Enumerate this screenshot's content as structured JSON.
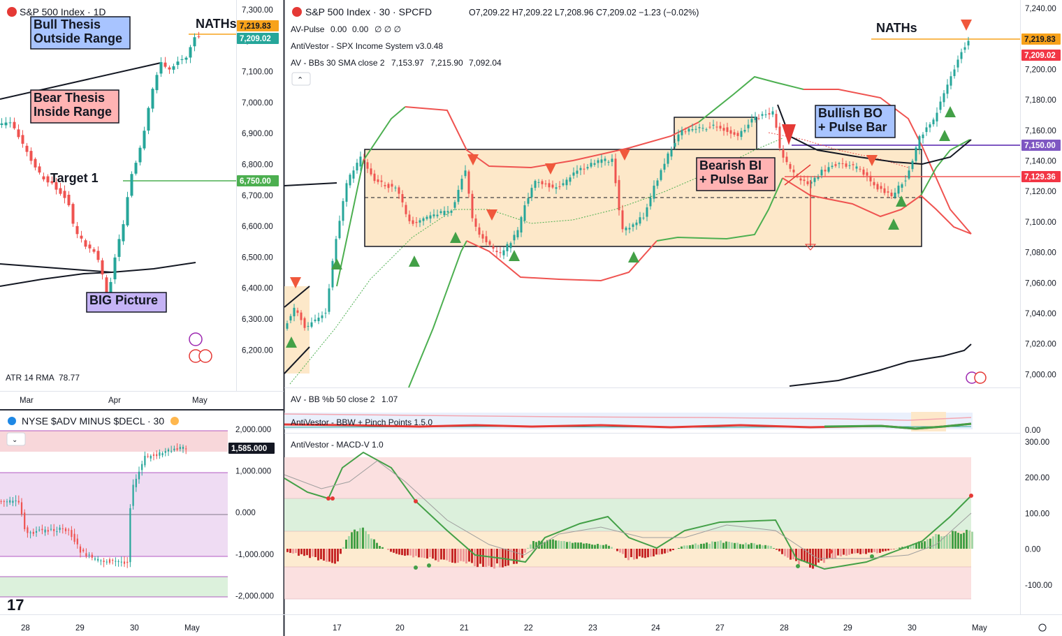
{
  "left_top": {
    "title": "S&P 500 Index · 1D",
    "y_ticks": [
      "7,300.00",
      "7,200.00",
      "7,100.00",
      "7,000.00",
      "6,900.00",
      "6,800.00",
      "6,700.00",
      "6,600.00",
      "6,500.00",
      "6,400.00",
      "6,300.00",
      "6,200.00"
    ],
    "x_ticks": [
      "Mar",
      "Apr",
      "May"
    ],
    "price_tags": [
      {
        "text": "7,219.83",
        "color": "#f7a21b"
      },
      {
        "text": "7,209.02",
        "color": "#26a69a"
      },
      {
        "text": "6,750.00",
        "color": "#4caf50"
      }
    ],
    "labels": {
      "bull": [
        "Bull Thesis",
        "Outside Range"
      ],
      "bear": [
        "Bear Thesis",
        "Inside Range"
      ],
      "target": "Target 1",
      "big": "BIG Picture",
      "naths": "NATHs"
    },
    "atr": {
      "label": "ATR 14 RMA",
      "value": "78.77"
    }
  },
  "left_bottom": {
    "title": "NYSE $ADV MINUS $DECL · 30",
    "y_ticks": [
      "2,000.000",
      "1,000.000",
      "0.000",
      "-1,000.000",
      "-2,000.000"
    ],
    "tag": "1,585.000",
    "x_ticks": [
      "28",
      "29",
      "30",
      "May"
    ]
  },
  "main": {
    "title": "S&P 500 Index · 30 · SPCFD",
    "ohlc": {
      "o": "O7,209.22",
      "h": "H7,209.22",
      "l": "L7,208.96",
      "c": "C7,209.02",
      "chg": "−1.23 (−0.02%)"
    },
    "legend": {
      "pulse": {
        "name": "AV-Pulse",
        "v1": "0.00",
        "v2": "0.00",
        "v3": "∅ ∅ ∅"
      },
      "income": "AntiVestor - SPX Income System v3.0.48",
      "bb": {
        "name": "AV - BBs 30 SMA close 2",
        "v1": "7,153.97",
        "v2": "7,215.90",
        "v3": "7,092.04"
      }
    },
    "y_ticks": [
      "7,240.00",
      "7,220.00",
      "7,200.00",
      "7,180.00",
      "7,160.00",
      "7,140.00",
      "7,120.00",
      "7,100.00",
      "7,080.00",
      "7,060.00",
      "7,040.00",
      "7,020.00",
      "7,000.00"
    ],
    "price_tags": [
      {
        "text": "7,219.83",
        "color": "#f7a21b"
      },
      {
        "text": "7,209.02",
        "color": "#f23645"
      },
      {
        "text": "7,150.00",
        "color": "#7e57c2"
      },
      {
        "text": "7,129.36",
        "color": "#f23645"
      }
    ],
    "labels": {
      "naths": "NATHs",
      "bullish": [
        "Bullish BO",
        "+ Pulse Bar"
      ],
      "bearish": [
        "Bearish BI",
        "+ Pulse Bar"
      ]
    }
  },
  "sub": {
    "bbpct": {
      "name": "AV - BB %b 50 close 2",
      "value": "1.07"
    },
    "bbw": {
      "name": "AntiVestor - BBW + Pinch Points 1.5.0",
      "tick": "0.00"
    },
    "macd": {
      "name": "AntiVestor - MACD-V 1.0"
    },
    "y_ticks": [
      "300.00",
      "200.00",
      "100.00",
      "0.00",
      "-100.00"
    ]
  },
  "x_ticks": [
    "17",
    "20",
    "21",
    "22",
    "23",
    "24",
    "27",
    "28",
    "29",
    "30",
    "May"
  ],
  "chart_data": {
    "type": "candlestick",
    "title": "S&P 500 Index · 30 · SPCFD",
    "ylim": [
      6990,
      7245
    ],
    "levels": {
      "naths": 7219.83,
      "last": 7209.02,
      "bullish_bo": 7150.0,
      "resistance": 7129.36,
      "range_top": 7140,
      "range_bottom": 7082,
      "range_mid": 7113
    },
    "close_path": {
      "x": [
        "16",
        "17",
        "17",
        "20",
        "20",
        "21",
        "21",
        "22",
        "22",
        "23",
        "23",
        "24",
        "24",
        "27",
        "27",
        "28",
        "28",
        "29",
        "29",
        "30",
        "30",
        "May"
      ],
      "y": [
        7030,
        7040,
        7110,
        7125,
        7100,
        7110,
        7125,
        7080,
        7105,
        7130,
        7130,
        7095,
        7130,
        7155,
        7170,
        7170,
        7145,
        7135,
        7130,
        7125,
        7160,
        7209
      ]
    },
    "bb_upper": {
      "x": [
        "17",
        "20",
        "21",
        "22",
        "23",
        "24",
        "27",
        "28",
        "29",
        "30",
        "May"
      ],
      "y": [
        7140,
        7180,
        7175,
        7118,
        7122,
        7140,
        7175,
        7178,
        7170,
        7152,
        7102
      ]
    },
    "bb_lower": {
      "x": [
        "17",
        "20",
        "21",
        "22",
        "23",
        "24",
        "27",
        "28",
        "29",
        "30",
        "May"
      ],
      "y": [
        7005,
        7030,
        7095,
        7063,
        7065,
        7090,
        7092,
        7095,
        7105,
        7110,
        7225
      ]
    }
  }
}
